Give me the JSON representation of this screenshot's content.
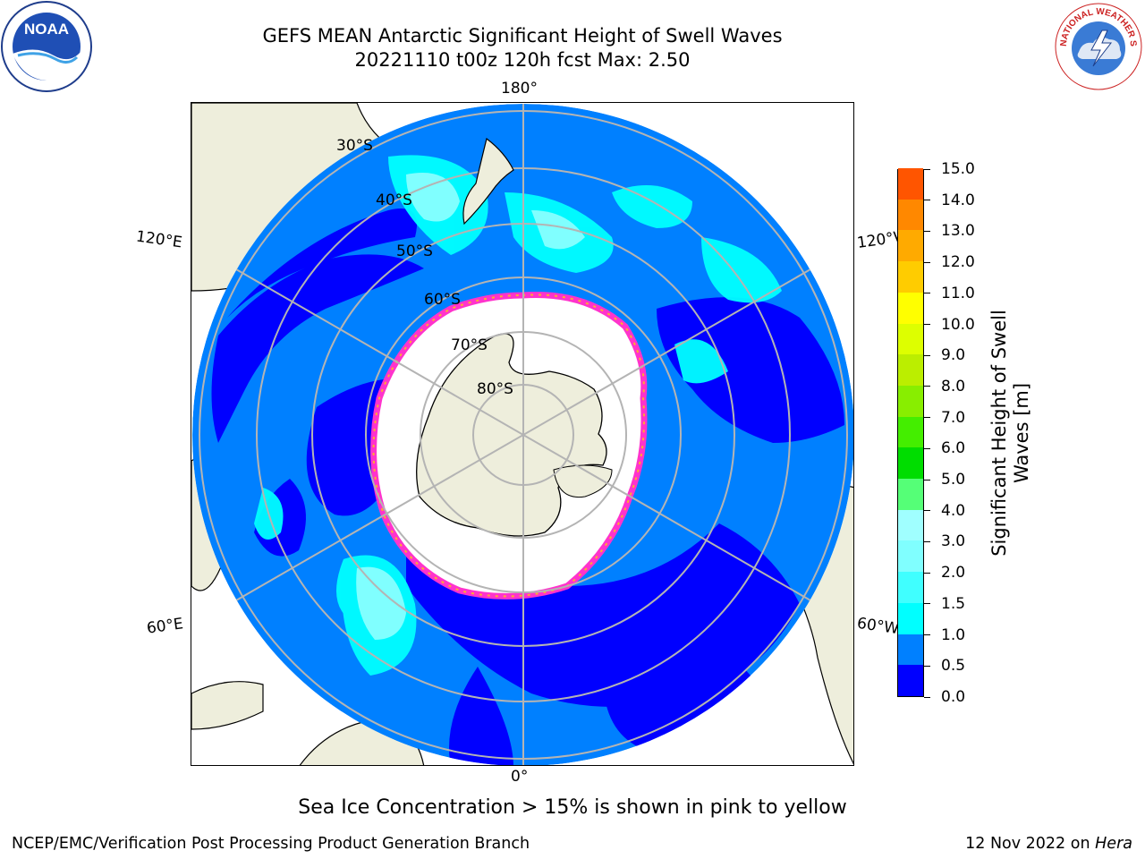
{
  "title_line1": "GEFS MEAN Antarctic Significant Height of Swell Waves",
  "title_line2": "20221110 t00z 120h fcst   Max: 2.50",
  "map": {
    "longitude_labels": {
      "top": "180°",
      "bottom": "0°",
      "upper_left": "120°E",
      "upper_right": "120°W",
      "lower_left": "60°E",
      "lower_right": "60°W"
    },
    "latitude_labels": [
      "30°S",
      "40°S",
      "50°S",
      "60°S",
      "70°S",
      "80°S"
    ],
    "colors": {
      "land": "#eeeedc",
      "ice": "#ffffff",
      "grid": "#b4b4b4",
      "sea_ice_edge": [
        "#ff33cc",
        "#ff9966",
        "#ffcc33"
      ]
    }
  },
  "colorbar": {
    "title_line1": "Significant Height of Swell",
    "title_line2": "Waves [m]",
    "tick_labels": [
      "0.0",
      "0.5",
      "1.0",
      "1.5",
      "2.0",
      "3.0",
      "4.0",
      "5.0",
      "6.0",
      "7.0",
      "8.0",
      "9.0",
      "10.0",
      "11.0",
      "12.0",
      "13.0",
      "14.0",
      "15.0"
    ],
    "colors": [
      "#0000ff",
      "#0080ff",
      "#00ffff",
      "#40ffff",
      "#80ffff",
      "#a0ffff",
      "#55ff77",
      "#00dd00",
      "#44ee00",
      "#88ee00",
      "#bbee00",
      "#ddff00",
      "#ffff00",
      "#ffcc00",
      "#ffaa00",
      "#ff8800",
      "#ff5500",
      "#ff2200",
      "#ff0000"
    ]
  },
  "subtitle": "Sea Ice Concentration > 15% is shown in pink to yellow",
  "footer_left": "NCEP/EMC/Verification Post Processing Product Generation Branch",
  "footer_right_prefix": "12 Nov 2022 on",
  "footer_right_italic": "Hera",
  "logos": {
    "left": {
      "icon": "noaa-logo",
      "text": "NOAA"
    },
    "right": {
      "icon": "nws-logo",
      "text": "NATIONAL WEATHER SERVICE"
    }
  }
}
